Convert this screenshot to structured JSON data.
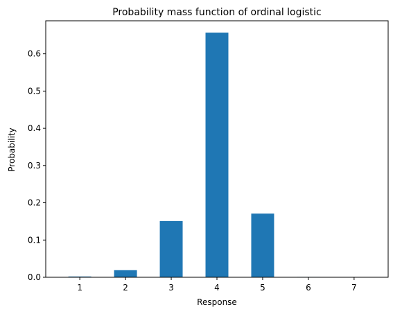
{
  "chart_data": {
    "type": "bar",
    "title": "Probability mass function of ordinal logistic",
    "xlabel": "Response",
    "ylabel": "Probability",
    "categories": [
      "1",
      "2",
      "3",
      "4",
      "5",
      "6",
      "7"
    ],
    "values": [
      0.002,
      0.019,
      0.151,
      0.657,
      0.171,
      0.001,
      0.0002
    ],
    "ylim": [
      0,
      0.6887
    ],
    "yticks": [
      0,
      0.1,
      0.2,
      0.3,
      0.4,
      0.5,
      0.6
    ],
    "ytick_labels": [
      "0.0",
      "0.1",
      "0.2",
      "0.3",
      "0.4",
      "0.5",
      "0.6"
    ],
    "bar_color": "#1f77b4",
    "grid": false
  }
}
